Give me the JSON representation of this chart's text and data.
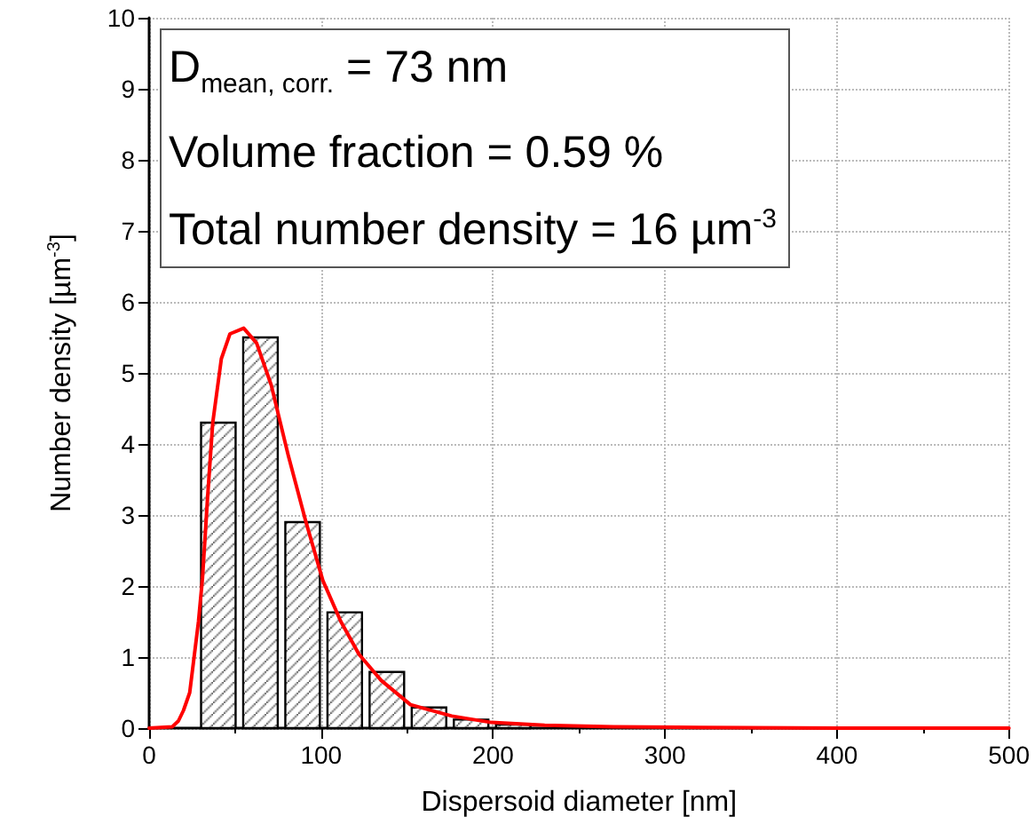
{
  "chart_data": {
    "type": "histogram",
    "xlabel": "Dispersoid diameter [nm]",
    "ylabel": "Number density [µm$^{-3}$]",
    "annotations": [
      "D$_{mean, corr.}$ = 73 nm",
      "Volume fraction = 0.59 %",
      "Total number density = 16 µm$^{-3}$"
    ],
    "series": [
      {
        "color": "#000000",
        "bins": [
          28,
          52.5,
          77,
          101.5,
          126,
          150.5,
          175,
          199.5,
          224
        ],
        "values": [
          4.3,
          5.5,
          2.9,
          1.63,
          0.79,
          0.29,
          0.12,
          0.05
        ]
      },
      {
        "type": "line",
        "color": "#ff0000",
        "x": [
          0,
          13.5,
          17,
          20,
          23.6,
          28.7,
          31,
          34,
          37,
          42,
          47,
          55,
          62.5,
          71,
          81,
          91,
          101,
          111.5,
          122,
          135,
          152,
          176,
          199,
          230,
          270,
          320,
          400,
          500
        ],
        "values": [
          0,
          0.02,
          0.1,
          0.25,
          0.5,
          1.5,
          2.1,
          3.25,
          4.3,
          5.2,
          5.55,
          5.63,
          5.42,
          4.83,
          3.83,
          2.92,
          2.08,
          1.5,
          1.04,
          0.67,
          0.33,
          0.17,
          0.08,
          0.04,
          0.02,
          0.01,
          0,
          0
        ]
      }
    ],
    "xlim": [
      0,
      500
    ],
    "xticks": [
      0,
      100,
      200,
      300,
      400,
      500
    ],
    "ylim": [
      0,
      10
    ],
    "yticks": [
      0,
      1,
      2,
      3,
      4,
      5,
      6,
      7,
      8,
      9,
      10
    ],
    "grid": true,
    "marker": "none",
    "line_style": "solid"
  }
}
